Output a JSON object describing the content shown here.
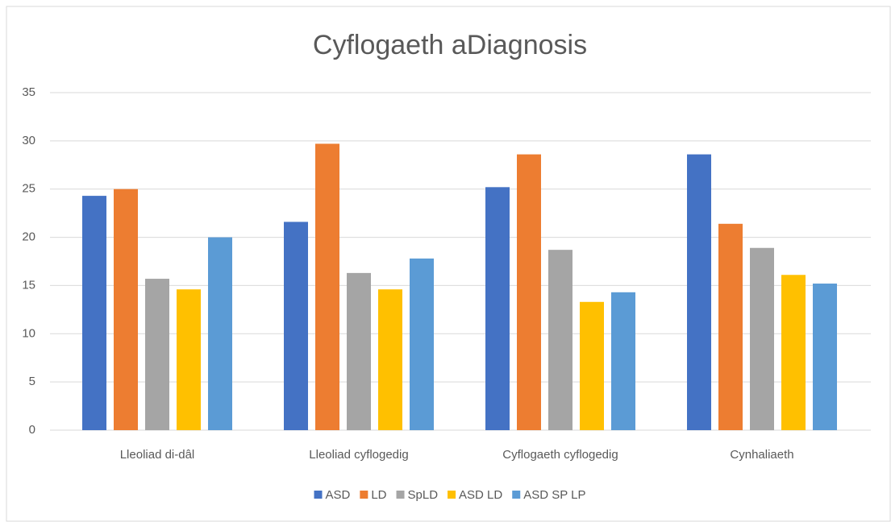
{
  "chart_data": {
    "type": "bar",
    "title": "Cyflogaeth aDiagnosis",
    "categories": [
      "Lleoliad di-dâl",
      "Lleoliad cyflogedig",
      "Cyflogaeth cyflogedig",
      "Cynhaliaeth"
    ],
    "series": [
      {
        "name": "ASD",
        "color": "#4472c4",
        "values": [
          24.3,
          21.6,
          25.2,
          28.6
        ]
      },
      {
        "name": "LD",
        "color": "#ed7d31",
        "values": [
          25.0,
          29.7,
          28.6,
          21.4
        ]
      },
      {
        "name": "SpLD",
        "color": "#a5a5a5",
        "values": [
          15.7,
          16.3,
          18.7,
          18.9
        ]
      },
      {
        "name": "ASD LD",
        "color": "#ffc000",
        "values": [
          14.6,
          14.6,
          13.3,
          16.1
        ]
      },
      {
        "name": "ASD SP LP",
        "color": "#5b9bd5",
        "values": [
          20.0,
          17.8,
          14.3,
          15.2
        ]
      }
    ],
    "ylim": [
      0,
      35
    ],
    "yticks": [
      0,
      5,
      10,
      15,
      20,
      25,
      30,
      35
    ],
    "grid": true,
    "legend": "bottom"
  }
}
